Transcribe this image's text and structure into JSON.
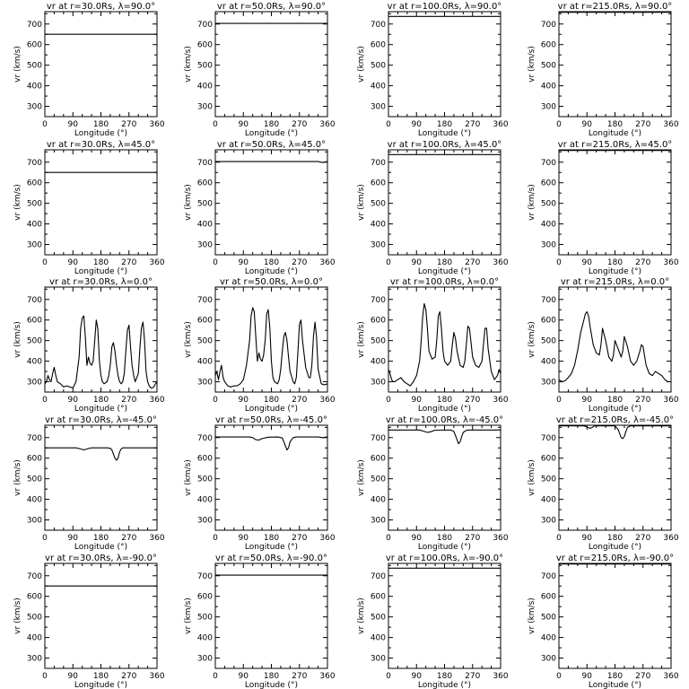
{
  "chart_data": {
    "type": "line",
    "rows": 5,
    "cols": 4,
    "xlabel": "Longitude (°)",
    "ylabel": "vr (km/s)",
    "xlim": [
      0,
      360
    ],
    "ylim": [
      250,
      760
    ],
    "xticks": [
      0,
      90,
      180,
      270,
      360
    ],
    "yticks": [
      300,
      400,
      500,
      600,
      700
    ],
    "panels": [
      {
        "title": "vr at r=30.0Rs, λ=90.0°",
        "series": [
          {
            "x": [
              0,
              360
            ],
            "y": [
              650,
              650
            ]
          }
        ]
      },
      {
        "title": "vr at r=50.0Rs, λ=90.0°",
        "series": [
          {
            "x": [
              0,
              360
            ],
            "y": [
              703,
              703
            ]
          }
        ]
      },
      {
        "title": "vr at r=100.0Rs, λ=90.0°",
        "series": [
          {
            "x": [
              0,
              360
            ],
            "y": [
              737,
              737
            ]
          }
        ]
      },
      {
        "title": "vr at r=215.0Rs, λ=90.0°",
        "series": [
          {
            "x": [
              0,
              360
            ],
            "y": [
              757,
              757
            ]
          }
        ]
      },
      {
        "title": "vr at r=30.0Rs, λ=45.0°",
        "series": [
          {
            "x": [
              0,
              360
            ],
            "y": [
              650,
              650
            ]
          }
        ]
      },
      {
        "title": "vr at r=50.0Rs, λ=45.0°",
        "series": [
          {
            "x": [
              0,
              330,
              345,
              360
            ],
            "y": [
              703,
              703,
              698,
              703
            ]
          }
        ]
      },
      {
        "title": "vr at r=100.0Rs, λ=45.0°",
        "series": [
          {
            "x": [
              0,
              360
            ],
            "y": [
              737,
              737
            ]
          }
        ]
      },
      {
        "title": "vr at r=215.0Rs, λ=45.0°",
        "series": [
          {
            "x": [
              0,
              360
            ],
            "y": [
              757,
              757
            ]
          }
        ]
      },
      {
        "title": "vr at r=30.0Rs, λ=0.0°",
        "series": [
          {
            "x": [
              0,
              5,
              10,
              15,
              20,
              25,
              30,
              35,
              40,
              50,
              60,
              70,
              80,
              90,
              100,
              110,
              115,
              120,
              125,
              130,
              135,
              140,
              145,
              150,
              155,
              160,
              165,
              170,
              175,
              180,
              185,
              190,
              200,
              205,
              210,
              215,
              220,
              225,
              230,
              235,
              240,
              245,
              250,
              255,
              260,
              265,
              270,
              275,
              280,
              285,
              290,
              300,
              305,
              310,
              315,
              320,
              325,
              330,
              335,
              340,
              345,
              350,
              355,
              360
            ],
            "y": [
              290,
              300,
              330,
              310,
              300,
              340,
              370,
              330,
              300,
              290,
              275,
              280,
              275,
              270,
              300,
              420,
              560,
              610,
              620,
              520,
              380,
              420,
              390,
              380,
              400,
              500,
              600,
              560,
              400,
              330,
              300,
              290,
              300,
              330,
              380,
              470,
              490,
              450,
              380,
              330,
              300,
              290,
              300,
              340,
              450,
              550,
              575,
              470,
              380,
              330,
              300,
              340,
              460,
              560,
              590,
              500,
              350,
              300,
              280,
              270,
              270,
              275,
              290,
              300
            ]
          }
        ]
      },
      {
        "title": "vr at r=50.0Rs, λ=0.0°",
        "series": [
          {
            "x": [
              0,
              5,
              10,
              15,
              20,
              25,
              30,
              40,
              50,
              60,
              70,
              80,
              90,
              100,
              110,
              115,
              120,
              125,
              130,
              135,
              140,
              145,
              150,
              155,
              160,
              165,
              170,
              175,
              180,
              185,
              190,
              200,
              205,
              210,
              215,
              220,
              225,
              230,
              235,
              240,
              250,
              255,
              260,
              265,
              270,
              275,
              280,
              290,
              300,
              305,
              310,
              315,
              320,
              325,
              330,
              340,
              350,
              360
            ],
            "y": [
              330,
              350,
              310,
              350,
              380,
              320,
              300,
              280,
              275,
              280,
              280,
              290,
              310,
              380,
              500,
              620,
              660,
              640,
              520,
              400,
              440,
              410,
              400,
              430,
              500,
              630,
              650,
              560,
              400,
              320,
              300,
              290,
              310,
              360,
              450,
              520,
              540,
              500,
              420,
              350,
              300,
              290,
              320,
              440,
              580,
              600,
              500,
              370,
              320,
              320,
              380,
              520,
              590,
              520,
              360,
              290,
              285,
              290
            ]
          }
        ]
      },
      {
        "title": "vr at r=100.0Rs, λ=0.0°",
        "series": [
          {
            "x": [
              0,
              5,
              10,
              15,
              20,
              30,
              40,
              50,
              60,
              70,
              80,
              90,
              100,
              105,
              110,
              115,
              120,
              125,
              130,
              140,
              150,
              155,
              160,
              165,
              170,
              175,
              180,
              190,
              200,
              205,
              210,
              215,
              220,
              230,
              240,
              245,
              250,
              255,
              260,
              270,
              280,
              290,
              300,
              305,
              310,
              315,
              320,
              330,
              340,
              350,
              355,
              360
            ],
            "y": [
              360,
              340,
              310,
              300,
              300,
              310,
              320,
              300,
              290,
              280,
              300,
              330,
              400,
              500,
              620,
              680,
              650,
              560,
              450,
              410,
              420,
              500,
              620,
              640,
              560,
              450,
              400,
              380,
              400,
              480,
              540,
              510,
              450,
              380,
              370,
              400,
              480,
              570,
              560,
              420,
              380,
              370,
              400,
              480,
              560,
              560,
              460,
              350,
              310,
              330,
              360,
              340
            ]
          }
        ]
      },
      {
        "title": "vr at r=215.0Rs, λ=0.0°",
        "series": [
          {
            "x": [
              0,
              10,
              20,
              30,
              40,
              50,
              60,
              70,
              80,
              85,
              90,
              95,
              100,
              110,
              120,
              130,
              135,
              140,
              150,
              160,
              170,
              175,
              180,
              190,
              200,
              205,
              210,
              220,
              230,
              240,
              250,
              260,
              265,
              270,
              280,
              290,
              300,
              310,
              320,
              330,
              340,
              350,
              360
            ],
            "y": [
              310,
              300,
              305,
              320,
              340,
              380,
              450,
              540,
              600,
              630,
              640,
              620,
              570,
              480,
              440,
              430,
              480,
              560,
              500,
              420,
              400,
              430,
              500,
              460,
              420,
              450,
              520,
              470,
              400,
              380,
              400,
              450,
              480,
              470,
              380,
              340,
              330,
              350,
              340,
              330,
              310,
              300,
              300
            ]
          }
        ]
      },
      {
        "title": "vr at r=30.0Rs, λ=-45.0°",
        "series": [
          {
            "x": [
              0,
              100,
              115,
              125,
              135,
              150,
              200,
              210,
              215,
              220,
              225,
              230,
              235,
              240,
              245,
              250,
              260,
              300,
              360
            ],
            "y": [
              650,
              650,
              645,
              640,
              645,
              650,
              650,
              648,
              640,
              620,
              600,
              590,
              600,
              630,
              645,
              650,
              650,
              650,
              650
            ]
          }
        ]
      },
      {
        "title": "vr at r=50.0Rs, λ=-45.0°",
        "series": [
          {
            "x": [
              0,
              110,
              120,
              130,
              140,
              150,
              170,
              200,
              215,
              220,
              225,
              230,
              235,
              240,
              250,
              260,
              280,
              300,
              330,
              345,
              360
            ],
            "y": [
              703,
              703,
              700,
              690,
              688,
              695,
              702,
              703,
              698,
              680,
              660,
              640,
              650,
              680,
              700,
              703,
              703,
              703,
              703,
              700,
              703
            ]
          }
        ]
      },
      {
        "title": "vr at r=100.0Rs, λ=-45.0°",
        "series": [
          {
            "x": [
              0,
              100,
              115,
              125,
              135,
              150,
              200,
              210,
              215,
              220,
              225,
              230,
              235,
              240,
              250,
              260,
              300,
              360
            ],
            "y": [
              737,
              737,
              730,
              725,
              728,
              736,
              737,
              730,
              710,
              690,
              670,
              680,
              705,
              725,
              735,
              737,
              737,
              737
            ]
          }
        ]
      },
      {
        "title": "vr at r=215.0Rs, λ=-45.0°",
        "series": [
          {
            "x": [
              0,
              80,
              90,
              95,
              100,
              105,
              115,
              180,
              190,
              195,
              200,
              205,
              210,
              215,
              220,
              230,
              240,
              300,
              360
            ],
            "y": [
              757,
              757,
              752,
              748,
              745,
              748,
              757,
              757,
              740,
              720,
              700,
              695,
              705,
              730,
              750,
              757,
              757,
              757,
              757
            ]
          }
        ]
      },
      {
        "title": "vr at r=30.0Rs, λ=-90.0°",
        "series": [
          {
            "x": [
              0,
              360
            ],
            "y": [
              650,
              650
            ]
          }
        ]
      },
      {
        "title": "vr at r=50.0Rs, λ=-90.0°",
        "series": [
          {
            "x": [
              0,
              360
            ],
            "y": [
              703,
              703
            ]
          }
        ]
      },
      {
        "title": "vr at r=100.0Rs, λ=-90.0°",
        "series": [
          {
            "x": [
              0,
              360
            ],
            "y": [
              737,
              737
            ]
          }
        ]
      },
      {
        "title": "vr at r=215.0Rs, λ=-90.0°",
        "series": [
          {
            "x": [
              0,
              360
            ],
            "y": [
              757,
              757
            ]
          }
        ]
      }
    ]
  }
}
